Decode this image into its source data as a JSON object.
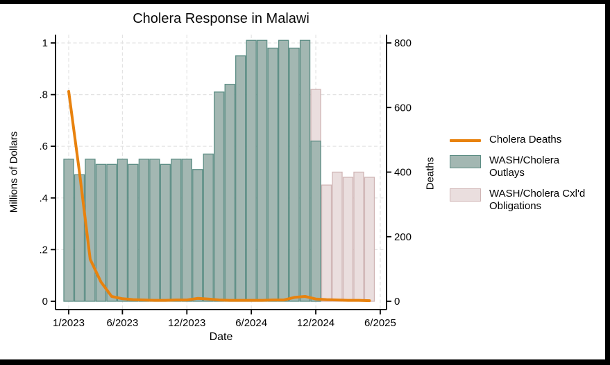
{
  "window": {
    "background": "#ffffff",
    "frame_border_color": "#000000"
  },
  "chart_data": {
    "type": "combo-bar-line",
    "title": "Cholera Response in Malawi",
    "xlabel": "Date",
    "ylabel_left": "Millions of Dollars",
    "ylabel_right": "Deaths",
    "grid": {
      "horizontal": true,
      "vertical": true,
      "style": "dashed",
      "color": "#e3e3e3"
    },
    "axis_color": "#000000",
    "left_axis": {
      "range": [
        0,
        1.05
      ],
      "ticks": [
        0,
        0.2,
        0.4,
        0.6,
        0.8,
        1
      ],
      "tick_labels": [
        "0",
        ".2",
        ".4",
        ".6",
        ".8",
        "1"
      ]
    },
    "right_axis": {
      "range": [
        0,
        840
      ],
      "ticks": [
        0,
        200,
        400,
        600,
        800
      ],
      "tick_labels": [
        "0",
        "200",
        "400",
        "600",
        "800"
      ]
    },
    "x_axis": {
      "tick_labels": [
        "1/2023",
        "6/2023",
        "12/2023",
        "6/2024",
        "12/2024",
        "6/2025"
      ],
      "tick_month_index": [
        0,
        5,
        11,
        17,
        23,
        29
      ],
      "start_month": "1/2023",
      "end_month": "6/2025"
    },
    "series": [
      {
        "name": "WASH/Cholera Cxl'd Obligations",
        "type": "bar",
        "axis": "left",
        "fill": "#eadede",
        "stroke": "#d0b5b5",
        "start_month_index": 23,
        "months": [
          "12/2024",
          "1/2025",
          "2/2025",
          "3/2025",
          "4/2025",
          "5/2025"
        ],
        "values": [
          0.82,
          0.45,
          0.5,
          0.48,
          0.5,
          0.48
        ]
      },
      {
        "name": "WASH/Cholera Outlays",
        "type": "bar",
        "axis": "left",
        "fill": "#a3b7b2",
        "stroke": "#5c8d84",
        "start_month_index": 0,
        "months": [
          "1/2023",
          "2/2023",
          "3/2023",
          "4/2023",
          "5/2023",
          "6/2023",
          "7/2023",
          "8/2023",
          "9/2023",
          "10/2023",
          "11/2023",
          "12/2023",
          "1/2024",
          "2/2024",
          "3/2024",
          "4/2024",
          "5/2024",
          "6/2024",
          "7/2024",
          "8/2024",
          "9/2024",
          "10/2024",
          "11/2024",
          "12/2024"
        ],
        "values": [
          0.55,
          0.49,
          0.55,
          0.53,
          0.53,
          0.55,
          0.53,
          0.55,
          0.55,
          0.53,
          0.55,
          0.55,
          0.51,
          0.57,
          0.81,
          0.84,
          0.95,
          1.01,
          1.01,
          0.98,
          1.01,
          0.98,
          1.01,
          0.62
        ]
      },
      {
        "name": "Cholera Deaths",
        "type": "line",
        "axis": "right",
        "color": "#e8820e",
        "start_month_index": 0,
        "months": [
          "1/2023",
          "2/2023",
          "3/2023",
          "4/2023",
          "5/2023",
          "6/2023",
          "7/2023",
          "8/2023",
          "9/2023",
          "10/2023",
          "11/2023",
          "12/2023",
          "1/2024",
          "2/2024",
          "3/2024",
          "4/2024",
          "5/2024",
          "6/2024",
          "7/2024",
          "8/2024",
          "9/2024",
          "10/2024",
          "11/2024",
          "12/2024",
          "1/2025",
          "2/2025",
          "3/2025",
          "4/2025",
          "5/2025"
        ],
        "values": [
          650,
          400,
          130,
          60,
          15,
          8,
          5,
          4,
          3,
          3,
          4,
          4,
          9,
          7,
          4,
          3,
          3,
          3,
          3,
          4,
          4,
          12,
          15,
          7,
          5,
          4,
          3,
          3,
          2
        ]
      }
    ],
    "legend": {
      "position": "right",
      "items": [
        {
          "label": "Cholera Deaths",
          "swatch": "line",
          "color": "#e8820e"
        },
        {
          "label": "WASH/Cholera Outlays",
          "swatch": "rect",
          "fill": "#a3b7b2",
          "stroke": "#5c8d84"
        },
        {
          "label": "WASH/Cholera Cxl'd Obligations",
          "swatch": "rect",
          "fill": "#eadede",
          "stroke": "#d0b5b5"
        }
      ]
    }
  }
}
